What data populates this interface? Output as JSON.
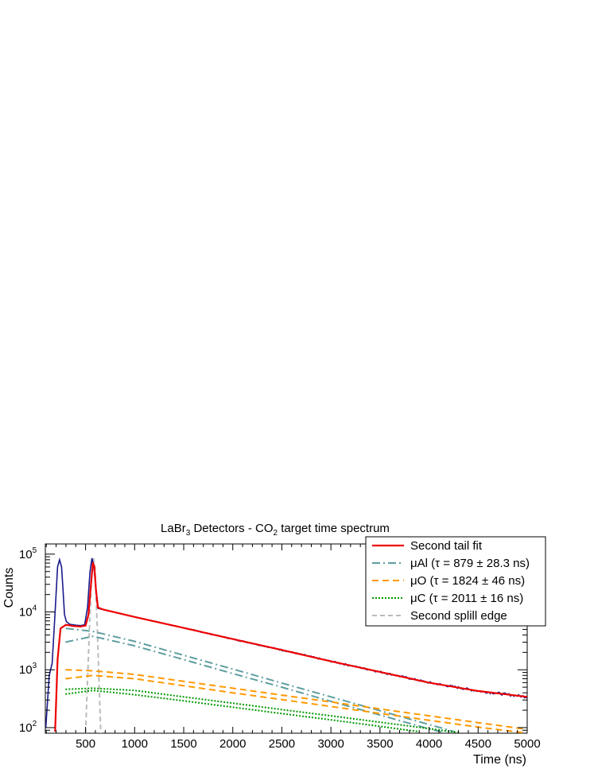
{
  "chart_data": {
    "type": "line",
    "title": {
      "main": "LaBr",
      "main_sub": "3",
      "middle": " Detectors - CO",
      "middle_sub": "2",
      "tail": " target time spectrum"
    },
    "xlabel": "Time (ns)",
    "ylabel": "Counts",
    "xlim": [
      90,
      5000
    ],
    "ylim": [
      80,
      150000
    ],
    "y_scale": "log",
    "x_ticks": [
      "500",
      "1000",
      "1500",
      "2000",
      "2500",
      "3000",
      "3500",
      "4000",
      "4500",
      "5000"
    ],
    "y_tick_labels": [
      {
        "base": "10",
        "exp": "2"
      },
      {
        "base": "10",
        "exp": "3"
      },
      {
        "base": "10",
        "exp": "4"
      },
      {
        "base": "10",
        "exp": "5"
      }
    ],
    "legend_position": "top-right",
    "colors": {
      "data": "#1a1a8c",
      "fit": "#ee0000",
      "al": "#5f9ea0",
      "o": "#ff9900",
      "c": "#009900",
      "edge": "#bbbbbb"
    },
    "series": [
      {
        "name": "data",
        "points": [
          [
            95,
            100
          ],
          [
            130,
            800
          ],
          [
            160,
            1300
          ],
          [
            190,
            10000
          ],
          [
            215,
            60000
          ],
          [
            235,
            80000
          ],
          [
            255,
            60000
          ],
          [
            270,
            25000
          ],
          [
            285,
            9000
          ],
          [
            305,
            6800
          ],
          [
            340,
            6100
          ],
          [
            400,
            5900
          ],
          [
            450,
            5800
          ],
          [
            490,
            6000
          ],
          [
            520,
            12000
          ],
          [
            545,
            50000
          ],
          [
            565,
            85000
          ],
          [
            585,
            60000
          ],
          [
            605,
            25000
          ],
          [
            630,
            11500
          ],
          [
            680,
            11000
          ],
          [
            1000,
            8200
          ],
          [
            1500,
            5300
          ],
          [
            2000,
            3400
          ],
          [
            2500,
            2200
          ],
          [
            3000,
            1400
          ],
          [
            3500,
            920
          ],
          [
            4000,
            600
          ],
          [
            4500,
            430
          ],
          [
            5000,
            340
          ]
        ]
      },
      {
        "name": "Second tail fit",
        "points": [
          [
            190,
            85
          ],
          [
            215,
            1500
          ],
          [
            245,
            5200
          ],
          [
            300,
            6000
          ],
          [
            380,
            5700
          ],
          [
            450,
            5600
          ],
          [
            500,
            5800
          ],
          [
            530,
            9000
          ],
          [
            555,
            30000
          ],
          [
            575,
            72000
          ],
          [
            590,
            60000
          ],
          [
            605,
            25000
          ],
          [
            625,
            12000
          ],
          [
            680,
            11000
          ],
          [
            1000,
            8200
          ],
          [
            1500,
            5300
          ],
          [
            2000,
            3400
          ],
          [
            2500,
            2200
          ],
          [
            3000,
            1400
          ],
          [
            3500,
            920
          ],
          [
            4000,
            600
          ],
          [
            4500,
            430
          ],
          [
            5000,
            340
          ]
        ]
      },
      {
        "name": "μAl",
        "tau": "879 ± 28.3 ns",
        "upper": [
          [
            300,
            5200
          ],
          [
            575,
            4600
          ],
          [
            1000,
            3100
          ],
          [
            1500,
            1780
          ],
          [
            2000,
            1030
          ],
          [
            2500,
            590
          ],
          [
            3000,
            340
          ],
          [
            3500,
            196
          ],
          [
            4000,
            113
          ],
          [
            4260,
            85
          ]
        ],
        "lower": [
          [
            295,
            3000
          ],
          [
            575,
            3800
          ],
          [
            1000,
            2600
          ],
          [
            1500,
            1500
          ],
          [
            2000,
            860
          ],
          [
            2500,
            500
          ],
          [
            3000,
            285
          ],
          [
            3500,
            165
          ],
          [
            4000,
            95
          ],
          [
            4180,
            80
          ]
        ]
      },
      {
        "name": "μO",
        "tau": "1824 ± 46 ns",
        "upper": [
          [
            295,
            1000
          ],
          [
            575,
            960
          ],
          [
            1000,
            830
          ],
          [
            1500,
            630
          ],
          [
            2000,
            480
          ],
          [
            2500,
            365
          ],
          [
            3000,
            278
          ],
          [
            3500,
            210
          ],
          [
            4000,
            160
          ],
          [
            4500,
            122
          ],
          [
            5000,
            93
          ]
        ],
        "lower": [
          [
            295,
            700
          ],
          [
            575,
            800
          ],
          [
            1000,
            700
          ],
          [
            1500,
            530
          ],
          [
            2000,
            400
          ],
          [
            2500,
            305
          ],
          [
            3000,
            232
          ],
          [
            3500,
            176
          ],
          [
            4000,
            134
          ],
          [
            4500,
            102
          ],
          [
            5000,
            80
          ]
        ]
      },
      {
        "name": "μC",
        "tau": "2011 ± 16 ns",
        "upper": [
          [
            295,
            460
          ],
          [
            575,
            480
          ],
          [
            1000,
            440
          ],
          [
            1500,
            340
          ],
          [
            2000,
            265
          ],
          [
            2500,
            205
          ],
          [
            3000,
            160
          ],
          [
            3500,
            124
          ],
          [
            4000,
            96
          ],
          [
            4300,
            82
          ]
        ],
        "lower": [
          [
            295,
            380
          ],
          [
            575,
            440
          ],
          [
            1000,
            370
          ],
          [
            1500,
            290
          ],
          [
            2000,
            225
          ],
          [
            2500,
            175
          ],
          [
            3000,
            136
          ],
          [
            3500,
            105
          ],
          [
            3900,
            85
          ]
        ]
      },
      {
        "name": "Second splill edge",
        "points": [
          [
            500,
            80
          ],
          [
            540,
            5000
          ],
          [
            565,
            60000
          ],
          [
            580,
            85000
          ],
          [
            595,
            60000
          ],
          [
            620,
            5000
          ],
          [
            655,
            80
          ]
        ]
      }
    ],
    "legend": [
      {
        "key": "fit",
        "text": "Second tail fit"
      },
      {
        "key": "al",
        "prefix": "μAl (",
        "tau_symbol": "τ",
        "rest": " = 879 ± 28.3 ns)"
      },
      {
        "key": "o",
        "prefix": "μO (",
        "tau_symbol": "τ",
        "rest": " = 1824 ± 46 ns)"
      },
      {
        "key": "c",
        "prefix": "μC (",
        "tau_symbol": "τ",
        "rest": " = 2011 ± 16 ns)"
      },
      {
        "key": "edge",
        "text": "Second splill edge"
      }
    ]
  }
}
